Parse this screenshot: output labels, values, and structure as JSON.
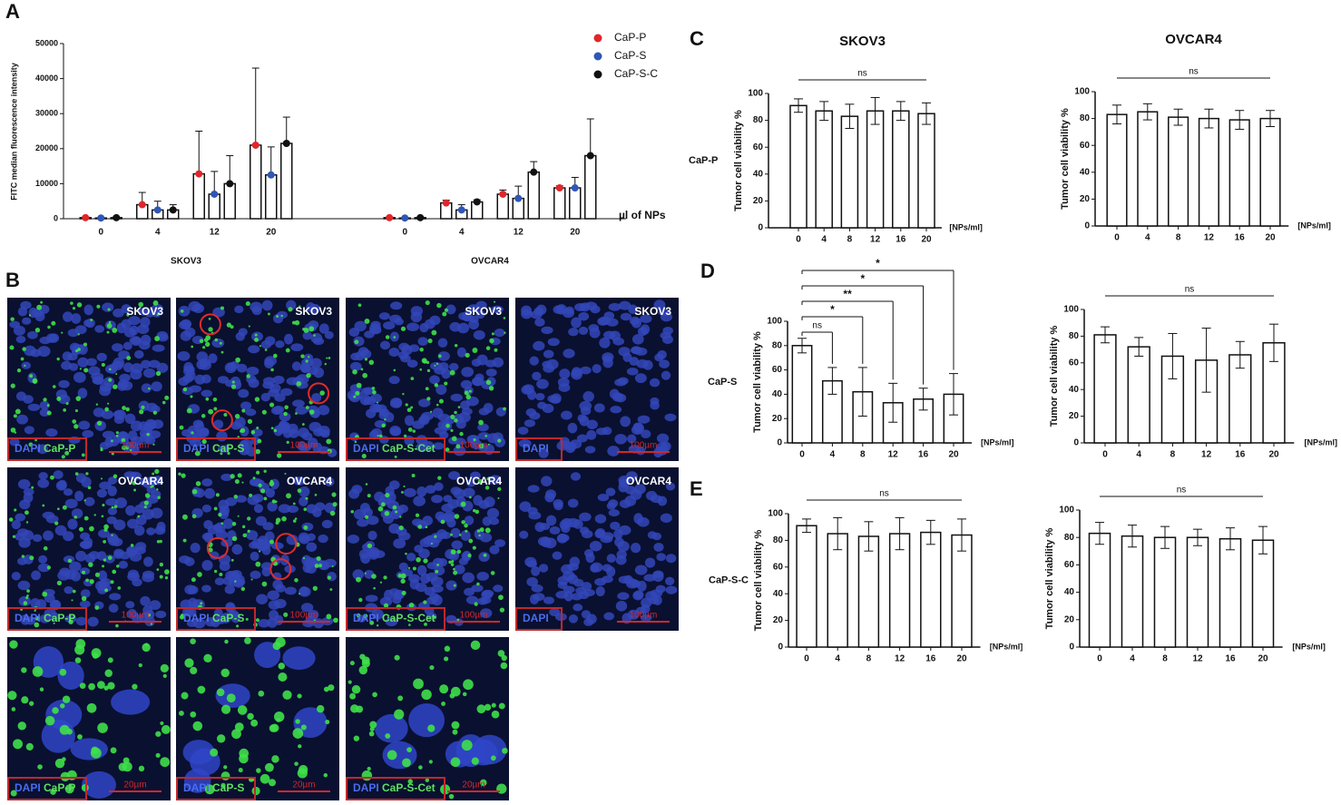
{
  "panel_labels": [
    "A",
    "B",
    "C",
    "D",
    "E"
  ],
  "chart_data": [
    {
      "type": "grouped-bar",
      "y_label": "FITC median fluorescence intensity",
      "x_label": "µl of NPs",
      "groups": [
        "SKOV3",
        "OVCAR4"
      ],
      "categories": [
        "0",
        "4",
        "12",
        "20",
        "0",
        "4",
        "12",
        "20"
      ],
      "series": [
        {
          "name": "CaP-P",
          "color": "#e0262b",
          "values": [
            300,
            4000,
            12800,
            21000,
            300,
            4500,
            7000,
            8800
          ],
          "errors": [
            200,
            3500,
            12200,
            22000,
            200,
            800,
            1200,
            600
          ]
        },
        {
          "name": "CaP-S",
          "color": "#2f57b5",
          "values": [
            200,
            2500,
            7000,
            12500,
            200,
            2500,
            5800,
            8800
          ],
          "errors": [
            150,
            2500,
            6500,
            8000,
            150,
            1500,
            3500,
            3000
          ]
        },
        {
          "name": "CaP-S-C",
          "color": "#111111",
          "values": [
            300,
            2500,
            10000,
            21500,
            300,
            4800,
            13300,
            18000
          ],
          "errors": [
            200,
            1500,
            8000,
            7500,
            200,
            600,
            3000,
            10500
          ]
        }
      ],
      "ylim": [
        0,
        50000
      ],
      "yticks": [
        0,
        10000,
        20000,
        30000,
        40000,
        50000
      ],
      "legend": "top-right"
    },
    {
      "type": "bar",
      "title": "SKOV3",
      "row_label": "CaP-P",
      "y_label": "Tumor cell viability %",
      "x_unit": "[NPs/ml]",
      "categories": [
        "0",
        "4",
        "8",
        "12",
        "16",
        "20"
      ],
      "values": [
        91,
        87,
        83,
        87,
        87,
        85
      ],
      "errors": [
        5,
        7,
        9,
        10,
        7,
        8
      ],
      "ylim": [
        0,
        100
      ],
      "yticks": [
        0,
        20,
        40,
        60,
        80,
        100
      ],
      "annotations": [
        {
          "label": "ns",
          "from": 0,
          "to": 5
        }
      ]
    },
    {
      "type": "bar",
      "title": "OVCAR4",
      "y_label": "Tumor cell viability %",
      "x_unit": "[NPs/ml]",
      "categories": [
        "0",
        "4",
        "8",
        "12",
        "16",
        "20"
      ],
      "values": [
        83,
        85,
        81,
        80,
        79,
        80
      ],
      "errors": [
        7,
        6,
        6,
        7,
        7,
        6
      ],
      "ylim": [
        0,
        100
      ],
      "yticks": [
        0,
        20,
        40,
        60,
        80,
        100
      ],
      "annotations": [
        {
          "label": "ns",
          "from": 0,
          "to": 5
        }
      ]
    },
    {
      "type": "bar",
      "row_label": "CaP-S",
      "y_label": "Tumor cell viability %",
      "x_unit": "[NPs/ml]",
      "categories": [
        "0",
        "4",
        "8",
        "12",
        "16",
        "20"
      ],
      "values": [
        80,
        51,
        42,
        33,
        36,
        40
      ],
      "errors": [
        6,
        11,
        20,
        16,
        9,
        17
      ],
      "ylim": [
        0,
        100
      ],
      "yticks": [
        0,
        20,
        40,
        60,
        80,
        100
      ],
      "annotations": [
        {
          "label": "ns",
          "from": 0,
          "to": 1
        },
        {
          "label": "*",
          "from": 0,
          "to": 2
        },
        {
          "label": "**",
          "from": 0,
          "to": 3
        },
        {
          "label": "*",
          "from": 0,
          "to": 4
        },
        {
          "label": "*",
          "from": 0,
          "to": 5
        }
      ]
    },
    {
      "type": "bar",
      "y_label": "Tumor cell viability %",
      "x_unit": "[NPs/ml]",
      "categories": [
        "0",
        "4",
        "8",
        "12",
        "16",
        "20"
      ],
      "values": [
        81,
        72,
        65,
        62,
        66,
        75
      ],
      "errors": [
        6,
        7,
        17,
        24,
        10,
        14
      ],
      "ylim": [
        0,
        100
      ],
      "yticks": [
        0,
        20,
        40,
        60,
        80,
        100
      ],
      "annotations": [
        {
          "label": "ns",
          "from": 0,
          "to": 5
        }
      ]
    },
    {
      "type": "bar",
      "row_label": "CaP-S-C",
      "y_label": "Tumor cell viability %",
      "x_unit": "[NPs/ml]",
      "categories": [
        "0",
        "4",
        "8",
        "12",
        "16",
        "20"
      ],
      "values": [
        91,
        85,
        83,
        85,
        86,
        84
      ],
      "errors": [
        5,
        12,
        11,
        12,
        9,
        12
      ],
      "ylim": [
        0,
        100
      ],
      "yticks": [
        0,
        20,
        40,
        60,
        80,
        100
      ],
      "annotations": [
        {
          "label": "ns",
          "from": 0,
          "to": 5
        }
      ]
    },
    {
      "type": "bar",
      "y_label": "Tumor cell viability %",
      "x_unit": "[NPs/ml]",
      "categories": [
        "0",
        "4",
        "8",
        "12",
        "16",
        "20"
      ],
      "values": [
        83,
        81,
        80,
        80,
        79,
        78
      ],
      "errors": [
        8,
        8,
        8,
        6,
        8,
        10
      ],
      "ylim": [
        0,
        100
      ],
      "yticks": [
        0,
        20,
        40,
        60,
        80,
        100
      ],
      "annotations": [
        {
          "label": "ns",
          "from": 0,
          "to": 5
        }
      ]
    }
  ],
  "micrographs": [
    [
      {
        "cell": "SKOV3",
        "stain": "DAPI",
        "np": "CaP-P",
        "scale": "100µm"
      },
      {
        "cell": "SKOV3",
        "stain": "DAPI",
        "np": "CaP-S",
        "scale": "100µm"
      },
      {
        "cell": "SKOV3",
        "stain": "DAPI",
        "np": "CaP-S-Cet",
        "scale": "100µm"
      },
      {
        "cell": "SKOV3",
        "stain": "DAPI",
        "scale": "100µm"
      }
    ],
    [
      {
        "cell": "OVCAR4",
        "stain": "DAPI",
        "np": "CaP-P",
        "scale": "100µm"
      },
      {
        "cell": "OVCAR4",
        "stain": "DAPI",
        "np": "CaP-S",
        "scale": "100µm"
      },
      {
        "cell": "OVCAR4",
        "stain": "DAPI",
        "np": "CaP-S-Cet",
        "scale": "100µm"
      },
      {
        "cell": "OVCAR4",
        "stain": "DAPI",
        "scale": "100µm"
      }
    ],
    [
      {
        "stain": "DAPI",
        "np": "CaP-P",
        "scale": "20µm"
      },
      {
        "stain": "DAPI",
        "np": "CaP-S",
        "scale": "20µm"
      },
      {
        "stain": "DAPI",
        "np": "CaP-S-Cet",
        "scale": "20µm"
      }
    ]
  ]
}
